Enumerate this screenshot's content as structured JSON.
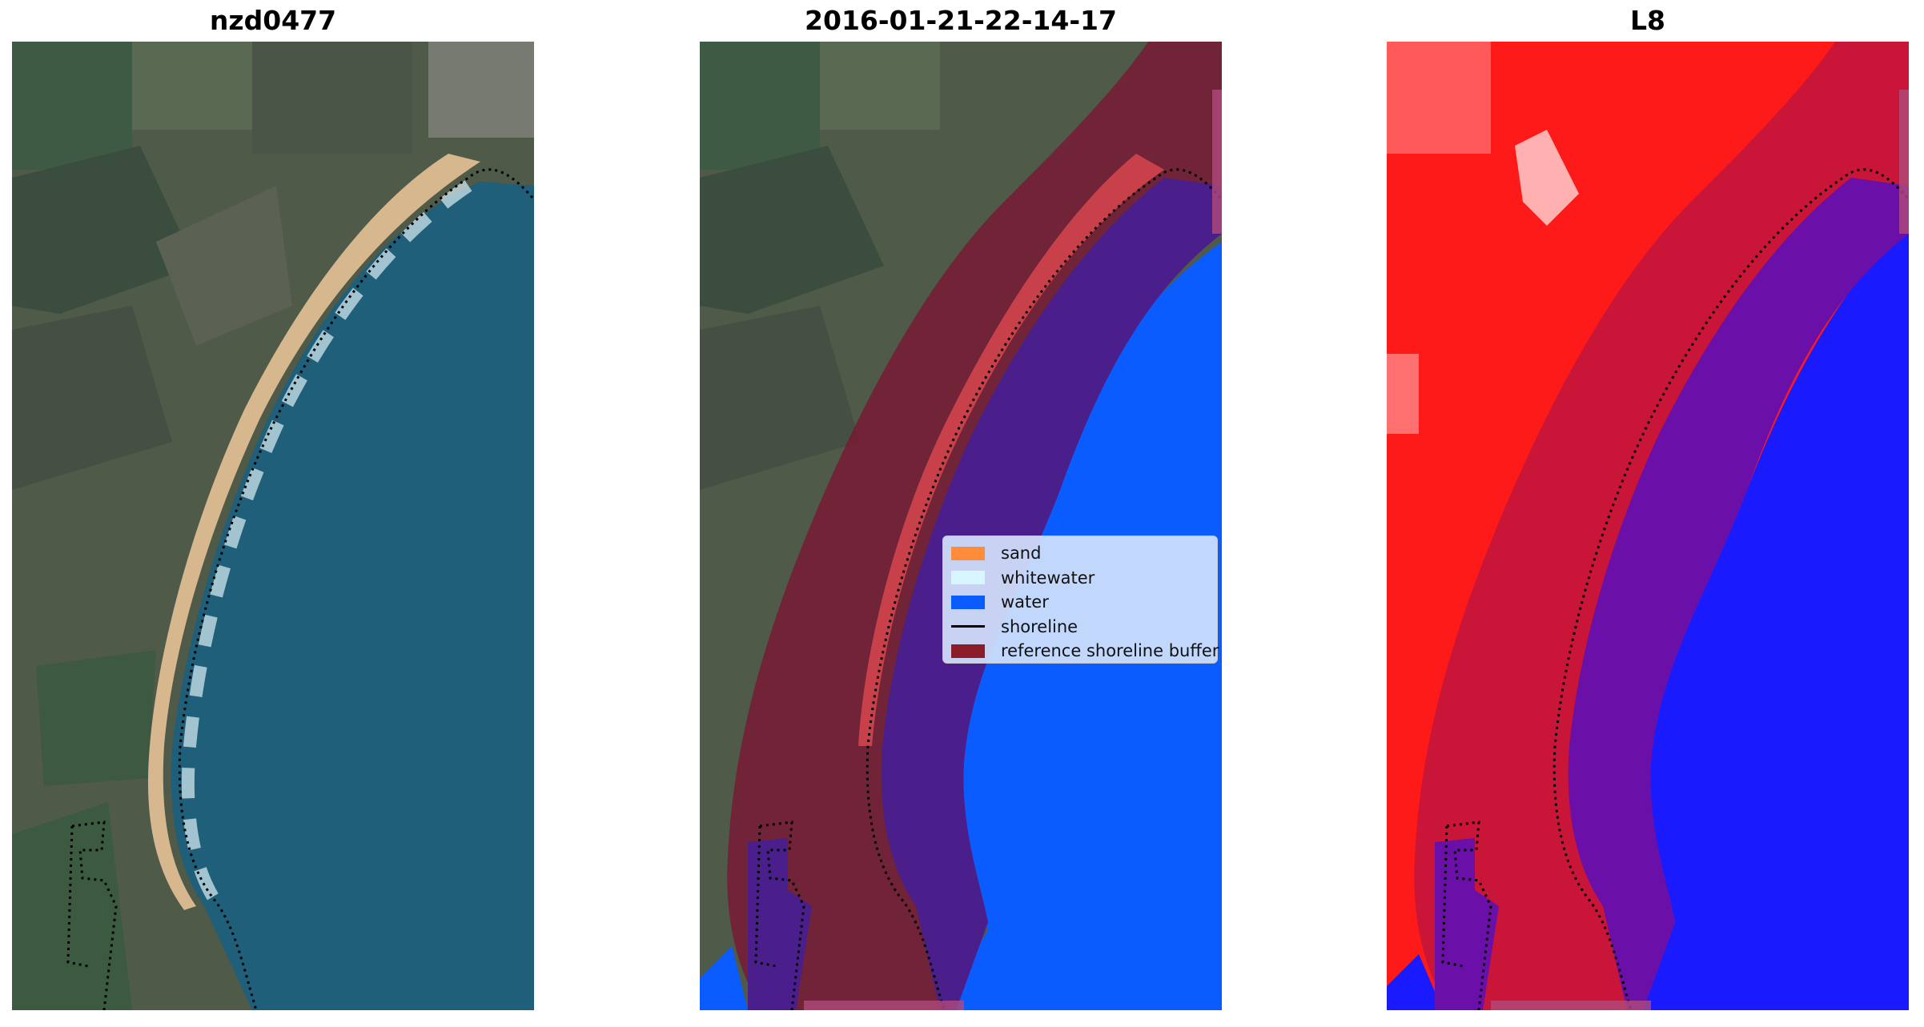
{
  "panels": [
    {
      "id": "rgb",
      "title": "nzd0477"
    },
    {
      "id": "classified",
      "title": "2016-01-21-22-14-17"
    },
    {
      "id": "mndwi",
      "title": "L8"
    }
  ],
  "legend": {
    "items": [
      {
        "label": "sand",
        "color": "#ff8c3a",
        "kind": "patch"
      },
      {
        "label": "whitewater",
        "color": "#d8f6ff",
        "kind": "patch"
      },
      {
        "label": "water",
        "color": "#0a5cff",
        "kind": "patch"
      },
      {
        "label": "shoreline",
        "color": "#000000",
        "kind": "line"
      },
      {
        "label": "reference shoreline buffer",
        "color": "#8b1c2a",
        "kind": "patch"
      }
    ]
  },
  "colors": {
    "land": "#4f5a48",
    "ocean": "#1f5f79",
    "beach": "#d6b78e",
    "surf": "#cfe6ee",
    "buffer": "#7b1432",
    "water_class": "#0a5cff",
    "water_in_buffer": "#4a1f8c",
    "sand_class": "#c8414a",
    "index_land": "#ff1a1a",
    "index_water": "#1a1aff",
    "shoreline": "#000000"
  }
}
